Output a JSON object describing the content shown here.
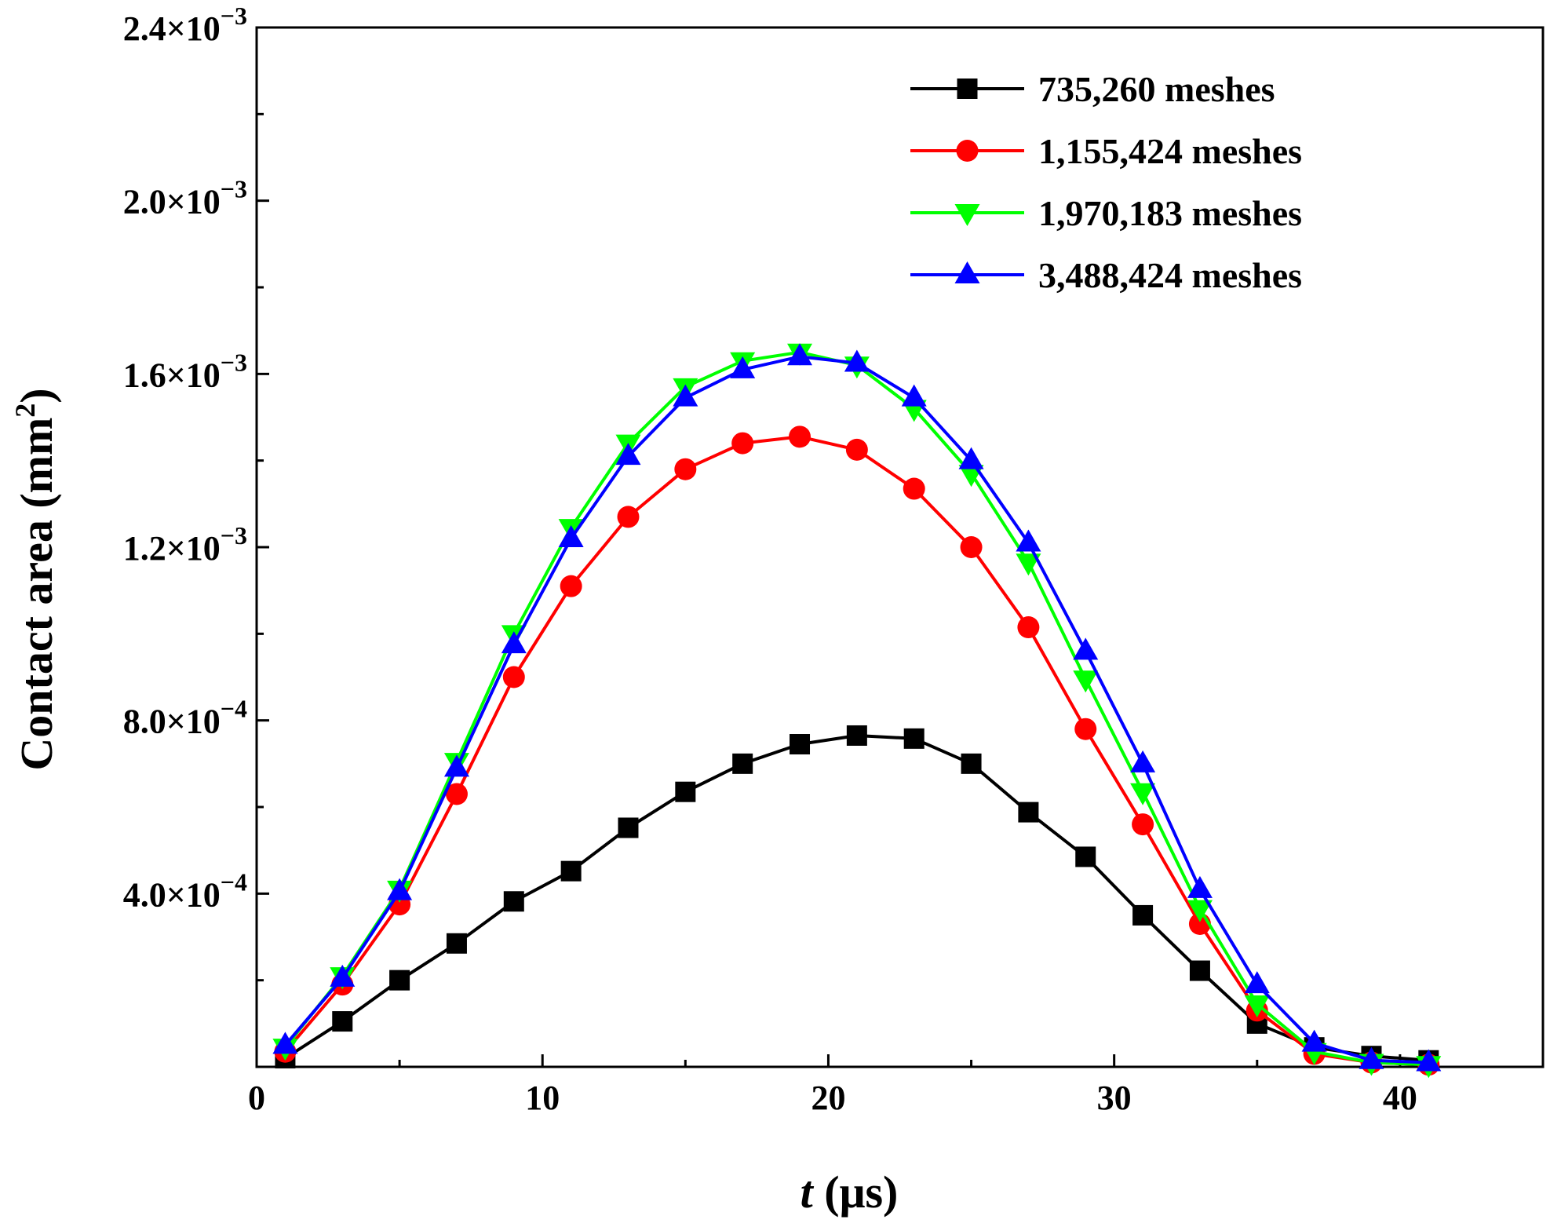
{
  "chart_data": {
    "type": "line",
    "xlabel_italic": "t",
    "xlabel_unit": " (μs)",
    "ylabel_main": "Contact area (mm",
    "ylabel_sup": "2",
    "ylabel_close": ")",
    "xlim": [
      0,
      45
    ],
    "ylim": [
      0,
      0.0024
    ],
    "x_ticks": [
      {
        "value": 0,
        "label": "0"
      },
      {
        "value": 10,
        "label": "10"
      },
      {
        "value": 20,
        "label": "20"
      },
      {
        "value": 30,
        "label": "30"
      },
      {
        "value": 40,
        "label": "40"
      }
    ],
    "y_ticks": [
      {
        "value": 0.0004,
        "mantissa": "4.0×10",
        "exponent": "−4"
      },
      {
        "value": 0.0008,
        "mantissa": "8.0×10",
        "exponent": "−4"
      },
      {
        "value": 0.0012,
        "mantissa": "1.2×10",
        "exponent": "−3"
      },
      {
        "value": 0.0016,
        "mantissa": "1.6×10",
        "exponent": "−3"
      },
      {
        "value": 0.002,
        "mantissa": "2.0×10",
        "exponent": "−3"
      },
      {
        "value": 0.0024,
        "mantissa": "2.4×10",
        "exponent": "−3"
      }
    ],
    "grid": false,
    "legend_position": "top-right",
    "x": [
      1,
      3,
      5,
      7,
      9,
      11,
      13,
      15,
      17,
      19,
      21,
      23,
      25,
      27,
      29,
      31,
      33,
      35,
      37,
      39,
      41
    ],
    "series": [
      {
        "name": "735,260 meshes",
        "color": "#000000",
        "marker": "square",
        "values": [
          2e-05,
          0.000105,
          0.0002,
          0.000285,
          0.000382,
          0.000452,
          0.000552,
          0.000635,
          0.0007,
          0.000745,
          0.000765,
          0.000758,
          0.0007,
          0.000588,
          0.000485,
          0.00035,
          0.000222,
          0.0001,
          4.5e-05,
          2.5e-05,
          1.5e-05
        ]
      },
      {
        "name": "1,155,424 meshes",
        "color": "#ff0000",
        "marker": "circle",
        "values": [
          3.5e-05,
          0.00019,
          0.000375,
          0.00063,
          0.0009,
          0.00111,
          0.00127,
          0.00138,
          0.00144,
          0.001455,
          0.001425,
          0.001335,
          0.0012,
          0.001015,
          0.00078,
          0.00056,
          0.00033,
          0.00013,
          3e-05,
          1e-05,
          5e-06
        ]
      },
      {
        "name": "1,970,183 meshes",
        "color": "#00ff00",
        "marker": "triangle-down",
        "values": [
          4.5e-05,
          0.00021,
          0.00041,
          0.000705,
          0.001,
          0.001245,
          0.00144,
          0.00157,
          0.00163,
          0.00165,
          0.00162,
          0.00152,
          0.00137,
          0.001165,
          0.000895,
          0.000635,
          0.000365,
          0.000145,
          3.5e-05,
          1e-05,
          5e-06
        ]
      },
      {
        "name": "3,488,424 meshes",
        "color": "#0000ff",
        "marker": "triangle-up",
        "values": [
          5e-05,
          0.000205,
          0.000405,
          0.00069,
          0.000975,
          0.00122,
          0.00141,
          0.001545,
          0.00161,
          0.00164,
          0.001625,
          0.001545,
          0.0014,
          0.00121,
          0.00096,
          0.0007,
          0.00041,
          0.00019,
          5.5e-05,
          1.5e-05,
          1e-05
        ]
      }
    ]
  }
}
